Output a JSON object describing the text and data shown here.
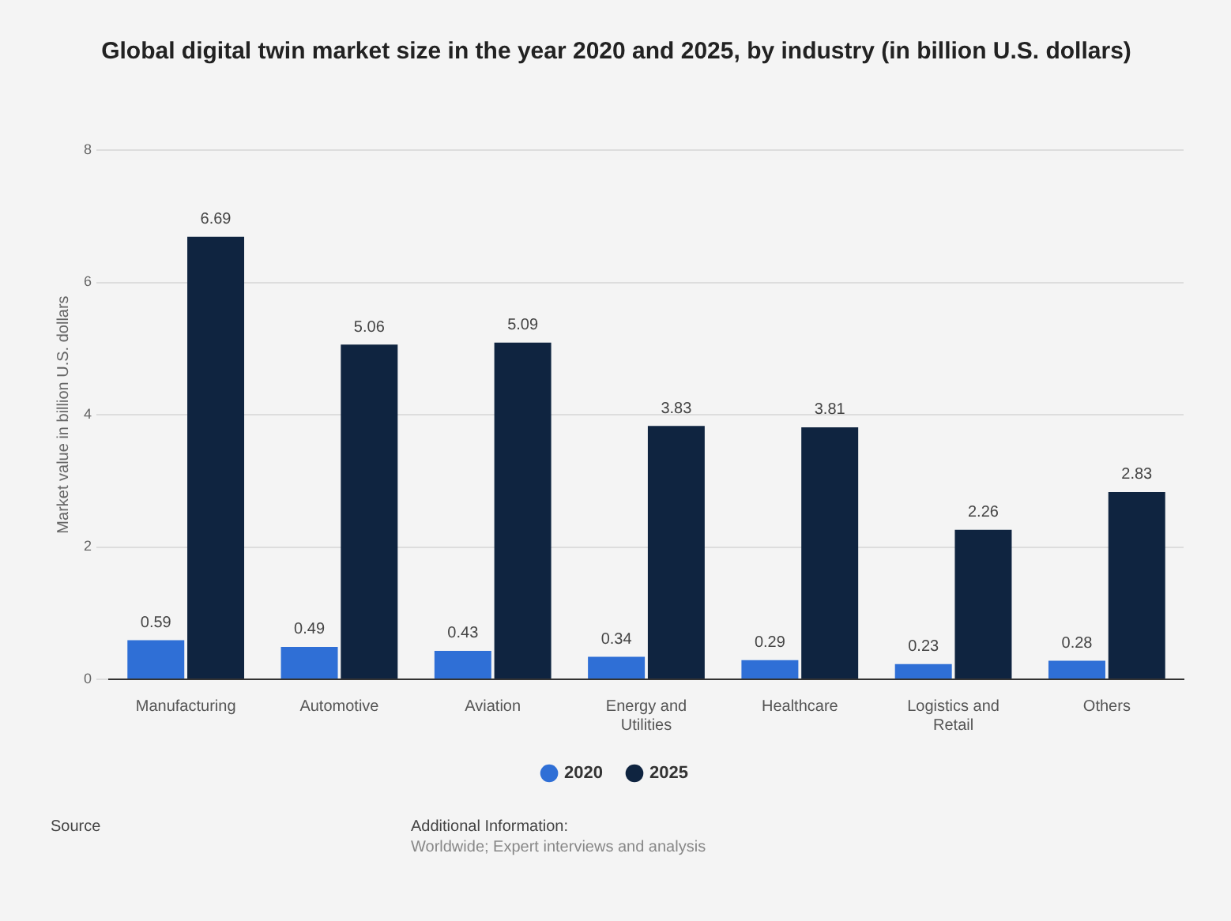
{
  "chart_data": {
    "type": "bar",
    "title": "Global digital twin market size in the year 2020 and 2025, by industry (in billion U.S. dollars)",
    "ylabel": "Market value in billion U.S. dollars",
    "categories": [
      "Manufacturing",
      "Automotive",
      "Aviation",
      "Energy and Utilities",
      "Healthcare",
      "Logistics and Retail",
      "Others"
    ],
    "series": [
      {
        "name": "2020",
        "color": "#2f6fd6",
        "values": [
          0.59,
          0.49,
          0.43,
          0.34,
          0.29,
          0.23,
          0.28
        ]
      },
      {
        "name": "2025",
        "color": "#0f2440",
        "values": [
          6.69,
          5.06,
          5.09,
          3.83,
          3.81,
          2.26,
          2.83
        ]
      }
    ],
    "ylim": [
      0,
      8
    ],
    "yticks": [
      0,
      2,
      4,
      6,
      8
    ],
    "grid": "y",
    "legend": "bottom",
    "data_labels": true,
    "annotations": [
      "Source",
      "Additional Information:",
      "Worldwide; Expert interviews and analysis"
    ]
  }
}
